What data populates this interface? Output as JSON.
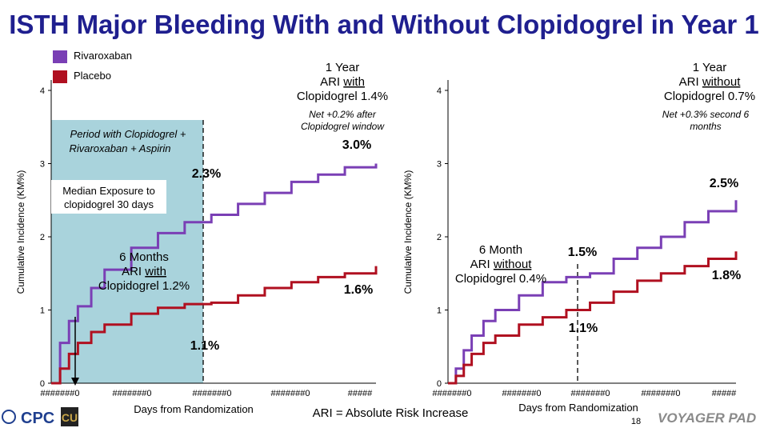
{
  "slide": {
    "title": "ISTH Major Bleeding With and Without Clopidogrel in Year 1",
    "page_number": "18",
    "footnote": "ARI = Absolute Risk Increase",
    "logos": {
      "left": "CPC",
      "right_brand": "VOYAGER PAD"
    }
  },
  "colors": {
    "rivaroxaban": "#7a3fb5",
    "placebo": "#b01020",
    "title": "#1f1f8f",
    "clopidogrel_window": "#a9d3dc"
  },
  "legend": [
    {
      "label": "Rivaroxaban",
      "color": "#7a3fb5"
    },
    {
      "label": "Placebo",
      "color": "#b01020"
    }
  ],
  "chart_data": [
    {
      "type": "line",
      "ylabel": "Cumulative Incidence (KM%)",
      "xlabel": "Days from Randomization",
      "ylim": [
        0,
        4
      ],
      "y_ticks": [
        "0",
        "1",
        "2",
        "3",
        "4"
      ],
      "x_tick_labels": [
        "#######0",
        "#######0",
        "#######0",
        "#######0",
        "#####"
      ],
      "x": [
        0,
        10,
        20,
        30,
        45,
        60,
        90,
        120,
        150,
        180,
        210,
        240,
        270,
        300,
        330,
        365
      ],
      "series": [
        {
          "name": "Rivaroxaban",
          "values": [
            0,
            0.55,
            0.85,
            1.05,
            1.3,
            1.55,
            1.85,
            2.05,
            2.2,
            2.3,
            2.45,
            2.6,
            2.75,
            2.85,
            2.95,
            3.0
          ]
        },
        {
          "name": "Placebo",
          "values": [
            0,
            0.2,
            0.4,
            0.55,
            0.7,
            0.8,
            0.95,
            1.03,
            1.08,
            1.1,
            1.2,
            1.3,
            1.38,
            1.45,
            1.5,
            1.6
          ]
        }
      ],
      "annotations": {
        "window_label": "Period with Clopidogrel + Rivaroxaban + Aspirin",
        "median_exposure": "Median Exposure to clopidogrel 30 days",
        "six_month_title": "6 Months",
        "six_month_ari": "ARI",
        "six_month_with": "with",
        "six_month_value": "Clopidogrel 1.2%",
        "one_year_title": "1 Year",
        "one_year_ari": "ARI",
        "one_year_with": "with",
        "one_year_value": "Clopidogrel 1.4%",
        "net_note": "Net +0.2% after Clopidogrel window",
        "riva_6m": "2.3%",
        "plac_6m": "1.1%",
        "riva_1y": "3.0%",
        "plac_1y": "1.6%"
      }
    },
    {
      "type": "line",
      "ylabel": "Cumulative Incidence (KM%)",
      "xlabel": "Days from Randomization",
      "ylim": [
        0,
        4
      ],
      "y_ticks": [
        "0",
        "1",
        "2",
        "3",
        "4"
      ],
      "x_tick_labels": [
        "#######0",
        "#######0",
        "#######0",
        "#######0",
        "#####"
      ],
      "x": [
        0,
        10,
        20,
        30,
        45,
        60,
        90,
        120,
        150,
        180,
        210,
        240,
        270,
        300,
        330,
        365
      ],
      "series": [
        {
          "name": "Rivaroxaban",
          "values": [
            0,
            0.2,
            0.45,
            0.65,
            0.85,
            1.0,
            1.2,
            1.38,
            1.45,
            1.5,
            1.7,
            1.85,
            2.0,
            2.2,
            2.35,
            2.5
          ]
        },
        {
          "name": "Placebo",
          "values": [
            0,
            0.1,
            0.25,
            0.4,
            0.55,
            0.65,
            0.8,
            0.9,
            1.0,
            1.1,
            1.25,
            1.4,
            1.5,
            1.6,
            1.7,
            1.8
          ]
        }
      ],
      "annotations": {
        "six_month_title": "6 Month",
        "six_month_ari": "ARI",
        "six_month_without": "without",
        "six_month_value": "Clopidogrel 0.4%",
        "one_year_title": "1 Year",
        "one_year_ari": "ARI",
        "one_year_without": "without",
        "one_year_value": "Clopidogrel 0.7%",
        "net_note": "Net +0.3% second 6 months",
        "riva_6m": "1.5%",
        "plac_6m": "1.1%",
        "riva_1y": "2.5%",
        "plac_1y": "1.8%"
      }
    }
  ]
}
